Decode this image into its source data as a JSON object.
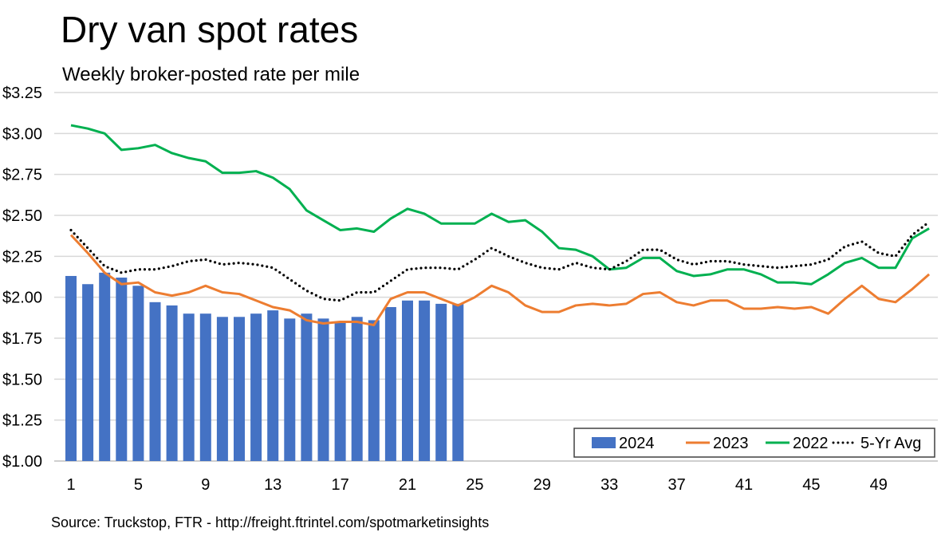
{
  "chart_data": {
    "type": "bar+line",
    "title": "Dry van spot rates",
    "subtitle": "Weekly broker-posted rate per mile",
    "source": "Source: Truckstop, FTR - http://freight.ftrintel.com/spotmarketinsights",
    "xlabel": "",
    "ylabel": "",
    "ylim": [
      1.0,
      3.25
    ],
    "y_ticks": [
      "$1.00",
      "$1.25",
      "$1.50",
      "$1.75",
      "$2.00",
      "$2.25",
      "$2.50",
      "$2.75",
      "$3.00",
      "$3.25"
    ],
    "x_ticks": [
      "1",
      "5",
      "9",
      "13",
      "17",
      "21",
      "25",
      "29",
      "33",
      "37",
      "41",
      "45",
      "49"
    ],
    "grid": "horizontal",
    "legend_position": "bottom-right",
    "series": [
      {
        "name": "2024",
        "type": "bar",
        "color": "#4472C4",
        "values": [
          2.13,
          2.08,
          2.15,
          2.12,
          2.07,
          1.97,
          1.95,
          1.9,
          1.9,
          1.88,
          1.88,
          1.9,
          1.92,
          1.87,
          1.9,
          1.87,
          1.85,
          1.88,
          1.86,
          1.94,
          1.98,
          1.98,
          1.96,
          1.96
        ]
      },
      {
        "name": "2023",
        "type": "line",
        "color": "#ED7D31",
        "values": [
          2.38,
          2.27,
          2.15,
          2.08,
          2.09,
          2.03,
          2.01,
          2.03,
          2.07,
          2.03,
          2.02,
          1.98,
          1.94,
          1.92,
          1.86,
          1.84,
          1.85,
          1.85,
          1.83,
          1.99,
          2.03,
          2.03,
          1.99,
          1.95,
          2.0,
          2.07,
          2.03,
          1.95,
          1.91,
          1.91,
          1.95,
          1.96,
          1.95,
          1.96,
          2.02,
          2.03,
          1.97,
          1.95,
          1.98,
          1.98,
          1.93,
          1.93,
          1.94,
          1.93,
          1.94,
          1.9,
          1.99,
          2.07,
          1.99,
          1.97,
          2.05,
          2.14
        ]
      },
      {
        "name": "2022",
        "type": "line",
        "color": "#00B050",
        "values": [
          3.05,
          3.03,
          3.0,
          2.9,
          2.91,
          2.93,
          2.88,
          2.85,
          2.83,
          2.76,
          2.76,
          2.77,
          2.73,
          2.66,
          2.53,
          2.47,
          2.41,
          2.42,
          2.4,
          2.48,
          2.54,
          2.51,
          2.45,
          2.45,
          2.45,
          2.51,
          2.46,
          2.47,
          2.4,
          2.3,
          2.29,
          2.25,
          2.17,
          2.18,
          2.24,
          2.24,
          2.16,
          2.13,
          2.14,
          2.17,
          2.17,
          2.14,
          2.09,
          2.09,
          2.08,
          2.14,
          2.21,
          2.24,
          2.18,
          2.18,
          2.36,
          2.42
        ]
      },
      {
        "name": "5-Yr Avg",
        "type": "dotted-line",
        "color": "#000000",
        "values": [
          2.41,
          2.3,
          2.19,
          2.15,
          2.17,
          2.17,
          2.19,
          2.22,
          2.23,
          2.2,
          2.21,
          2.2,
          2.18,
          2.11,
          2.04,
          1.99,
          1.98,
          2.03,
          2.03,
          2.1,
          2.17,
          2.18,
          2.18,
          2.17,
          2.23,
          2.3,
          2.25,
          2.21,
          2.18,
          2.17,
          2.21,
          2.18,
          2.17,
          2.22,
          2.29,
          2.29,
          2.23,
          2.2,
          2.22,
          2.22,
          2.2,
          2.19,
          2.18,
          2.19,
          2.2,
          2.23,
          2.31,
          2.34,
          2.27,
          2.25,
          2.38,
          2.46
        ]
      }
    ]
  }
}
